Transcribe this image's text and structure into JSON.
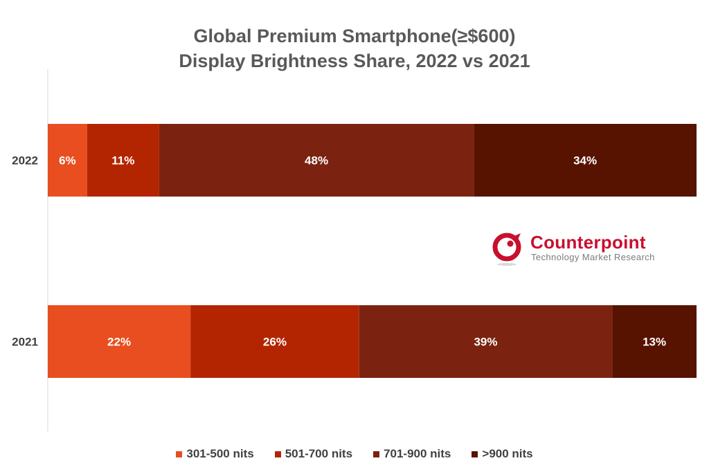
{
  "chart_data": {
    "type": "bar",
    "orientation": "horizontal",
    "stacked": true,
    "title": [
      "Global Premium Smartphone(≥$600)",
      "Display Brightness Share, 2022 vs 2021"
    ],
    "categories": [
      "2022",
      "2021"
    ],
    "series": [
      {
        "name": "301-500 nits",
        "color": "#e84e1f",
        "values": [
          6,
          22
        ],
        "labels": [
          "6%",
          "22%"
        ]
      },
      {
        "name": "501-700 nits",
        "color": "#b32500",
        "values": [
          11,
          26
        ],
        "labels": [
          "11%",
          "26%"
        ]
      },
      {
        "name": "701-900 nits",
        "color": "#7b2310",
        "values": [
          48,
          39
        ],
        "labels": [
          "48%",
          "39%"
        ]
      },
      {
        "name": ">900 nits",
        "color": "#571200",
        "values": [
          34,
          13
        ],
        "labels": [
          "34%",
          "13%"
        ]
      }
    ],
    "xlim": [
      0,
      100
    ],
    "grid": false,
    "legend_position": "bottom"
  },
  "logo": {
    "name": "Counterpoint",
    "tagline": "Technology Market Research",
    "color": "#c8102e",
    "icon": "counterpoint-logo-icon"
  }
}
